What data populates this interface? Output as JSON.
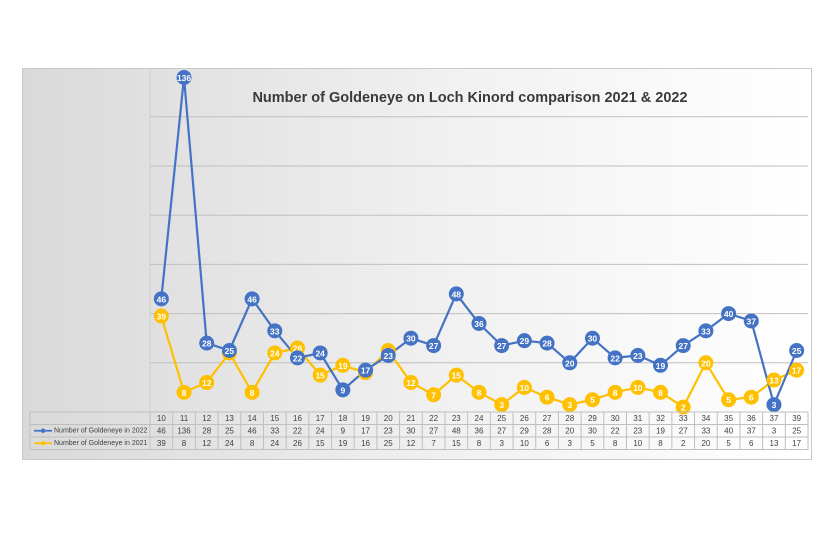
{
  "chart_data": {
    "type": "line",
    "title": "Number of Goldeneye on Loch Kinord  comparison 2021 & 2022",
    "categories": [
      "10",
      "11",
      "12",
      "13",
      "14",
      "15",
      "16",
      "17",
      "18",
      "19",
      "20",
      "21",
      "22",
      "23",
      "24",
      "25",
      "26",
      "27",
      "28",
      "29",
      "30",
      "31",
      "32",
      "33",
      "34",
      "35",
      "36",
      "37",
      "39"
    ],
    "ylim": [
      0,
      140
    ],
    "grid": true,
    "legend_position": "data-table",
    "series": [
      {
        "name": "Number of Goldeneye in 2022",
        "color": "#4472c4",
        "values": [
          46,
          136,
          28,
          25,
          46,
          33,
          22,
          24,
          9,
          17,
          23,
          30,
          27,
          48,
          36,
          27,
          29,
          28,
          20,
          30,
          22,
          23,
          19,
          27,
          33,
          40,
          37,
          3,
          25
        ]
      },
      {
        "name": "Number of Goldeneye in 2021",
        "color": "#ffc000",
        "values": [
          39,
          8,
          12,
          24,
          8,
          24,
          26,
          15,
          19,
          16,
          25,
          12,
          7,
          15,
          8,
          3,
          10,
          6,
          3,
          5,
          8,
          10,
          8,
          2,
          20,
          5,
          6,
          13,
          17
        ]
      }
    ]
  }
}
